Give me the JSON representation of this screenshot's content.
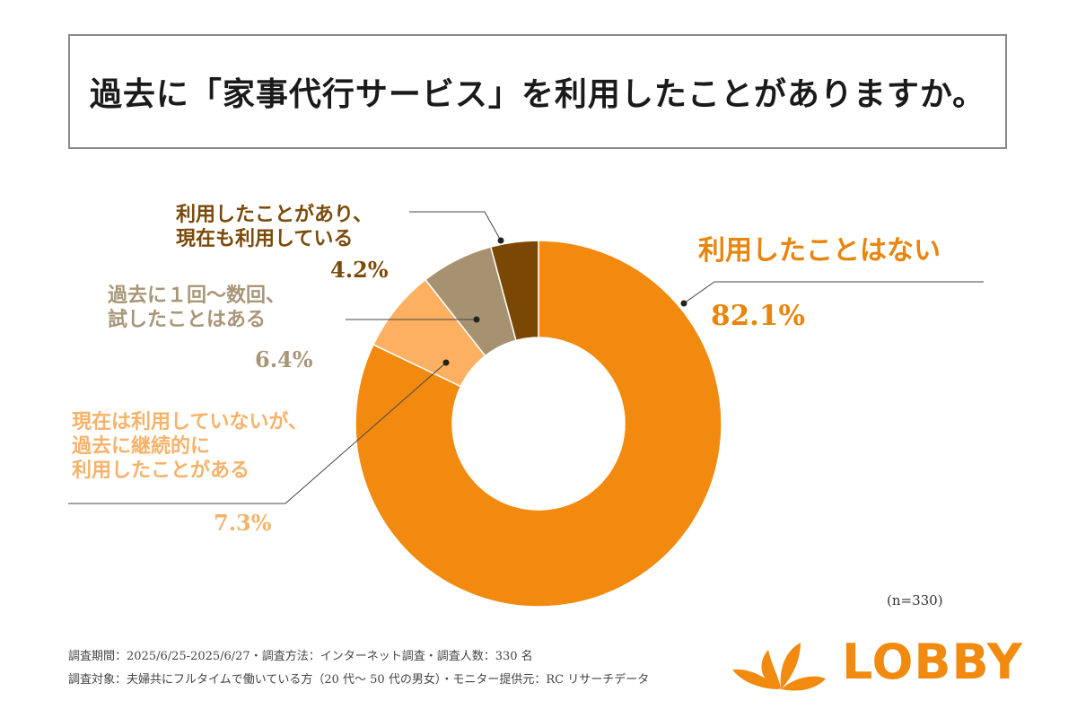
{
  "title": "過去に「家事代行サービス」を利用したことがありますか。",
  "chart_data": {
    "type": "pie",
    "variant": "donut",
    "title": "過去に「家事代行サービス」を利用したことがありますか。",
    "start": "12 o'clock, clockwise",
    "slices": [
      {
        "label": "利用したことはない",
        "value": 82.1,
        "value_label": "82.1%",
        "color": "#F28A0F",
        "label_color": "#E8850C"
      },
      {
        "label": "現在は利用していないが、過去に継続的に利用したことがある",
        "lines": [
          "現在は利用していないが、",
          "過去に継続的に",
          "利用したことがある"
        ],
        "value": 7.3,
        "value_label": "7.3%",
        "color": "#FDB061",
        "label_color": "#F7B26A"
      },
      {
        "label": "過去に1回〜数回、試したことはある",
        "lines": [
          "過去に１回〜数回、",
          "試したことはある"
        ],
        "value": 6.4,
        "value_label": "6.4%",
        "color": "#A69271",
        "label_color": "#A89678"
      },
      {
        "label": "利用したことがあり、現在も利用している",
        "lines": [
          "利用したことがあり、",
          "現在も利用している"
        ],
        "value": 4.2,
        "value_label": "4.2%",
        "color": "#7A4802",
        "label_color": "#7A4A0A"
      }
    ],
    "sample_size": "(n=330)"
  },
  "notes": [
    "調査期間：2025/6/25-2025/6/27・調査方法：インターネット調査・調査人数：330 名",
    "調査対象：夫婦共にフルタイムで働いている方（20 代〜 50 代の男女）・モニター提供元：RC リサーチデータ"
  ],
  "logo": {
    "text": "LOBBY",
    "color": "#F28A0F"
  }
}
